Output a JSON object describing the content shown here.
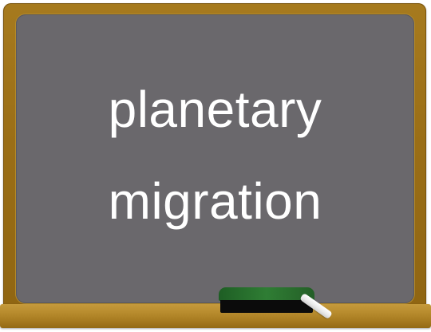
{
  "board": {
    "line1": "planetary",
    "line2": "migration"
  },
  "colors": {
    "frame": "#9a6e16",
    "board": "#6a686c",
    "text": "#ffffff",
    "eraser_top": "#2f7d34",
    "eraser_base": "#0b0b0b",
    "chalk": "#ffffff"
  }
}
